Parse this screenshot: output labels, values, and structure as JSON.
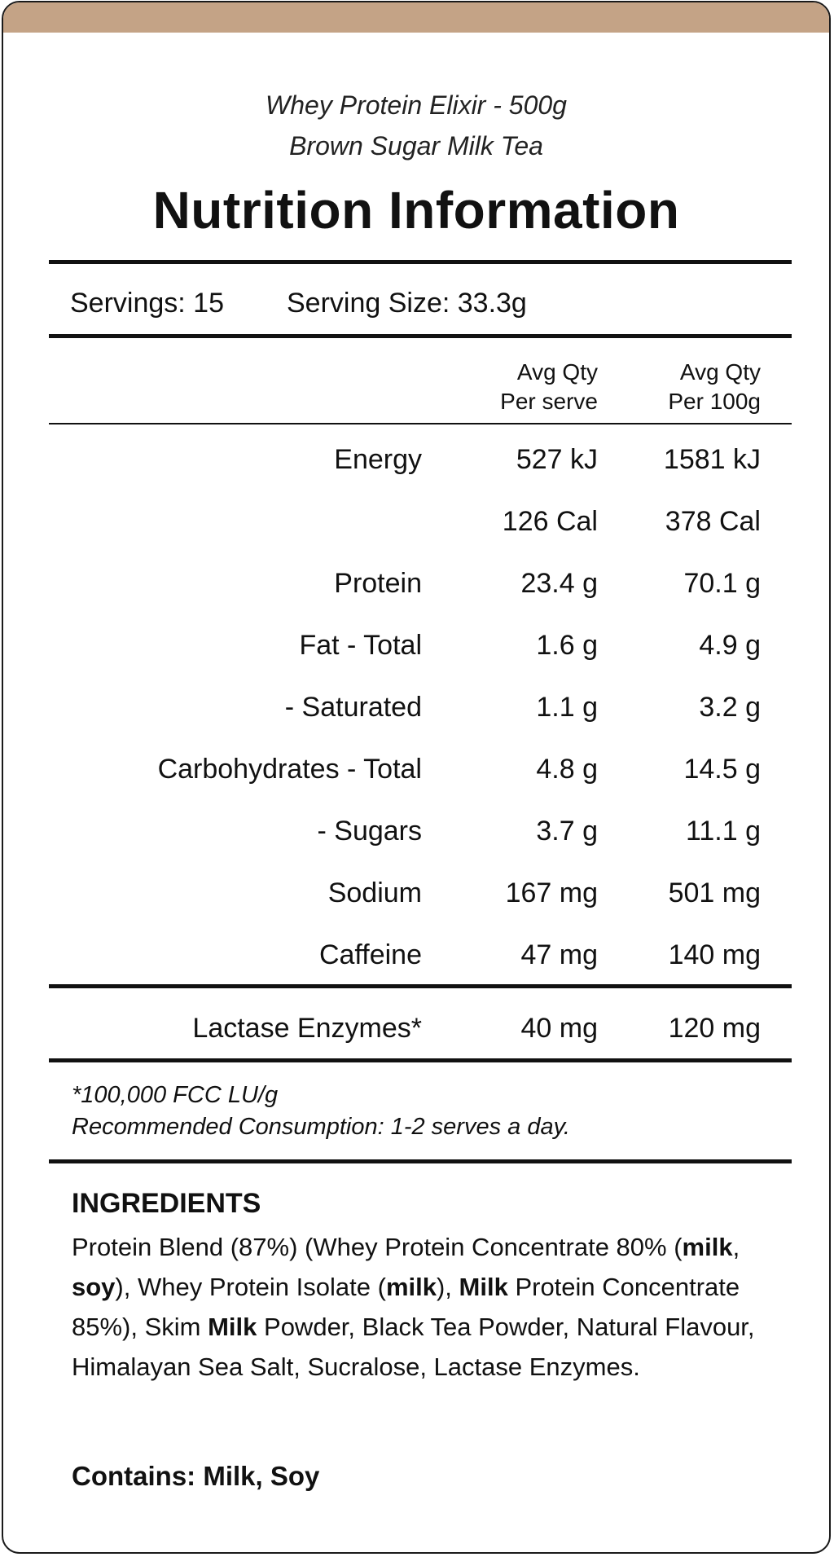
{
  "colors": {
    "accent": "#c4a386",
    "border": "#1a1a1a",
    "text": "#111111"
  },
  "product": {
    "name": "Whey Protein Elixir - 500g",
    "flavour": "Brown Sugar Milk Tea"
  },
  "title": "Nutrition Information",
  "servings": {
    "servings_label": "Servings: 15",
    "serving_size_label": "Serving Size: 33.3g"
  },
  "columns": {
    "per_serve_1": "Avg Qty",
    "per_serve_2": "Per serve",
    "per_100g_1": "Avg Qty",
    "per_100g_2": "Per 100g"
  },
  "rows": [
    {
      "name": "Energy",
      "per_serve": "527 kJ",
      "per_100g": "1581 kJ"
    },
    {
      "name": "",
      "per_serve": "126 Cal",
      "per_100g": "378 Cal"
    },
    {
      "name": "Protein",
      "per_serve": "23.4 g",
      "per_100g": "70.1 g"
    },
    {
      "name": "Fat - Total",
      "per_serve": "1.6 g",
      "per_100g": "4.9 g"
    },
    {
      "name": "- Saturated",
      "per_serve": "1.1 g",
      "per_100g": "3.2 g"
    },
    {
      "name": "Carbohydrates - Total",
      "per_serve": "4.8 g",
      "per_100g": "14.5 g"
    },
    {
      "name": "- Sugars",
      "per_serve": "3.7 g",
      "per_100g": "11.1 g"
    },
    {
      "name": "Sodium",
      "per_serve": "167 mg",
      "per_100g": "501 mg"
    },
    {
      "name": "Caffeine",
      "per_serve": "47 mg",
      "per_100g": "140 mg"
    }
  ],
  "lactase": {
    "name": "Lactase Enzymes*",
    "per_serve": "40 mg",
    "per_100g": "120 mg"
  },
  "notes": {
    "footnote": "*100,000 FCC LU/g",
    "recommended": "Recommended Consumption: 1-2 serves a day."
  },
  "ingredients": {
    "heading": "INGREDIENTS",
    "parts": [
      {
        "text": "Protein Blend (87%) (Whey Protein Concentrate 80% (",
        "bold": false
      },
      {
        "text": "milk",
        "bold": true
      },
      {
        "text": ", ",
        "bold": false
      },
      {
        "text": "soy",
        "bold": true
      },
      {
        "text": "), Whey Protein Isolate (",
        "bold": false
      },
      {
        "text": "milk",
        "bold": true
      },
      {
        "text": "), ",
        "bold": false
      },
      {
        "text": "Milk",
        "bold": true
      },
      {
        "text": " Protein Concentrate 85%), Skim ",
        "bold": false
      },
      {
        "text": "Milk",
        "bold": true
      },
      {
        "text": " Powder, Black Tea Powder, Natural Flavour, Himalayan Sea Salt, Sucralose, Lactase Enzymes.",
        "bold": false
      }
    ]
  },
  "contains": "Contains: Milk, Soy"
}
